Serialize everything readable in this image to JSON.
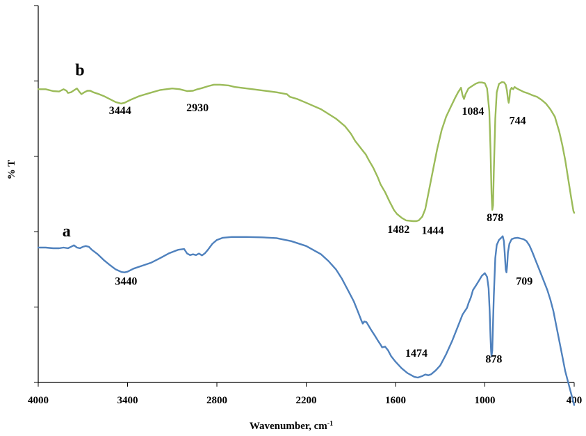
{
  "chart_data": {
    "type": "line",
    "title": "",
    "xlabel": "Wavenumber, cm",
    "xlabel_superscript": "-1",
    "ylabel": "% T",
    "x_reversed": true,
    "xlim": [
      4000,
      400
    ],
    "ylim": [
      0,
      1
    ],
    "grid": false,
    "legend": "none",
    "x_ticks": [
      "4000",
      "3400",
      "2800",
      "2200",
      "1600",
      "1000",
      "400"
    ],
    "x_tick_values": [
      4000,
      3400,
      2800,
      2200,
      1600,
      1000,
      400
    ],
    "y_tick_values": [
      0,
      0.2,
      0.4,
      0.6,
      0.8,
      1.0
    ],
    "series": [
      {
        "tag": "b",
        "color": "#9BBB59",
        "tag_pos": [
          3720,
          0.815
        ],
        "points": [
          [
            4000,
            0.778
          ],
          [
            3950,
            0.778
          ],
          [
            3900,
            0.773
          ],
          [
            3860,
            0.772
          ],
          [
            3830,
            0.778
          ],
          [
            3810,
            0.774
          ],
          [
            3800,
            0.768
          ],
          [
            3780,
            0.77
          ],
          [
            3760,
            0.775
          ],
          [
            3740,
            0.78
          ],
          [
            3725,
            0.772
          ],
          [
            3710,
            0.765
          ],
          [
            3690,
            0.77
          ],
          [
            3670,
            0.774
          ],
          [
            3650,
            0.774
          ],
          [
            3630,
            0.77
          ],
          [
            3600,
            0.766
          ],
          [
            3560,
            0.76
          ],
          [
            3520,
            0.752
          ],
          [
            3480,
            0.744
          ],
          [
            3444,
            0.74
          ],
          [
            3420,
            0.742
          ],
          [
            3380,
            0.75
          ],
          [
            3320,
            0.76
          ],
          [
            3250,
            0.768
          ],
          [
            3180,
            0.776
          ],
          [
            3100,
            0.78
          ],
          [
            3050,
            0.778
          ],
          [
            3000,
            0.773
          ],
          [
            2960,
            0.774
          ],
          [
            2930,
            0.778
          ],
          [
            2900,
            0.781
          ],
          [
            2860,
            0.786
          ],
          [
            2820,
            0.79
          ],
          [
            2780,
            0.79
          ],
          [
            2720,
            0.788
          ],
          [
            2680,
            0.784
          ],
          [
            2600,
            0.78
          ],
          [
            2500,
            0.775
          ],
          [
            2400,
            0.77
          ],
          [
            2330,
            0.765
          ],
          [
            2310,
            0.758
          ],
          [
            2260,
            0.752
          ],
          [
            2200,
            0.742
          ],
          [
            2100,
            0.725
          ],
          [
            2000,
            0.7
          ],
          [
            1940,
            0.68
          ],
          [
            1900,
            0.66
          ],
          [
            1870,
            0.64
          ],
          [
            1850,
            0.63
          ],
          [
            1820,
            0.615
          ],
          [
            1800,
            0.605
          ],
          [
            1780,
            0.59
          ],
          [
            1750,
            0.57
          ],
          [
            1720,
            0.545
          ],
          [
            1700,
            0.525
          ],
          [
            1670,
            0.505
          ],
          [
            1640,
            0.48
          ],
          [
            1610,
            0.457
          ],
          [
            1590,
            0.447
          ],
          [
            1560,
            0.437
          ],
          [
            1530,
            0.43
          ],
          [
            1482,
            0.428
          ],
          [
            1460,
            0.428
          ],
          [
            1444,
            0.43
          ],
          [
            1420,
            0.44
          ],
          [
            1400,
            0.46
          ],
          [
            1380,
            0.5
          ],
          [
            1350,
            0.56
          ],
          [
            1320,
            0.62
          ],
          [
            1290,
            0.67
          ],
          [
            1260,
            0.705
          ],
          [
            1230,
            0.73
          ],
          [
            1200,
            0.755
          ],
          [
            1180,
            0.77
          ],
          [
            1160,
            0.782
          ],
          [
            1150,
            0.762
          ],
          [
            1140,
            0.752
          ],
          [
            1130,
            0.765
          ],
          [
            1110,
            0.78
          ],
          [
            1080,
            0.788
          ],
          [
            1060,
            0.793
          ],
          [
            1040,
            0.796
          ],
          [
            1020,
            0.796
          ],
          [
            1000,
            0.794
          ],
          [
            985,
            0.78
          ],
          [
            970,
            0.72
          ],
          [
            962,
            0.62
          ],
          [
            955,
            0.5
          ],
          [
            950,
            0.458
          ],
          [
            945,
            0.47
          ],
          [
            940,
            0.56
          ],
          [
            930,
            0.7
          ],
          [
            920,
            0.77
          ],
          [
            905,
            0.792
          ],
          [
            885,
            0.797
          ],
          [
            870,
            0.796
          ],
          [
            860,
            0.79
          ],
          [
            852,
            0.775
          ],
          [
            845,
            0.752
          ],
          [
            840,
            0.742
          ],
          [
            835,
            0.752
          ],
          [
            830,
            0.775
          ],
          [
            820,
            0.782
          ],
          [
            810,
            0.778
          ],
          [
            800,
            0.784
          ],
          [
            790,
            0.781
          ],
          [
            770,
            0.777
          ],
          [
            740,
            0.771
          ],
          [
            710,
            0.767
          ],
          [
            680,
            0.762
          ],
          [
            650,
            0.758
          ],
          [
            620,
            0.75
          ],
          [
            590,
            0.74
          ],
          [
            560,
            0.725
          ],
          [
            530,
            0.705
          ],
          [
            500,
            0.665
          ],
          [
            480,
            0.63
          ],
          [
            460,
            0.59
          ],
          [
            440,
            0.54
          ],
          [
            420,
            0.49
          ],
          [
            405,
            0.455
          ],
          [
            400,
            0.45
          ]
        ]
      },
      {
        "tag": "a",
        "color": "#4F81BD",
        "tag_pos": [
          3810,
          0.387
        ],
        "points": [
          [
            4000,
            0.358
          ],
          [
            3950,
            0.358
          ],
          [
            3900,
            0.356
          ],
          [
            3860,
            0.356
          ],
          [
            3830,
            0.358
          ],
          [
            3800,
            0.356
          ],
          [
            3780,
            0.36
          ],
          [
            3760,
            0.364
          ],
          [
            3740,
            0.358
          ],
          [
            3720,
            0.356
          ],
          [
            3700,
            0.36
          ],
          [
            3680,
            0.362
          ],
          [
            3660,
            0.36
          ],
          [
            3640,
            0.352
          ],
          [
            3600,
            0.34
          ],
          [
            3560,
            0.325
          ],
          [
            3520,
            0.312
          ],
          [
            3480,
            0.3
          ],
          [
            3440,
            0.293
          ],
          [
            3420,
            0.292
          ],
          [
            3400,
            0.294
          ],
          [
            3360,
            0.302
          ],
          [
            3300,
            0.31
          ],
          [
            3240,
            0.318
          ],
          [
            3180,
            0.33
          ],
          [
            3120,
            0.343
          ],
          [
            3060,
            0.352
          ],
          [
            3020,
            0.354
          ],
          [
            3000,
            0.342
          ],
          [
            2980,
            0.338
          ],
          [
            2960,
            0.34
          ],
          [
            2940,
            0.338
          ],
          [
            2920,
            0.342
          ],
          [
            2900,
            0.337
          ],
          [
            2880,
            0.343
          ],
          [
            2860,
            0.352
          ],
          [
            2830,
            0.368
          ],
          [
            2800,
            0.378
          ],
          [
            2760,
            0.384
          ],
          [
            2700,
            0.386
          ],
          [
            2600,
            0.386
          ],
          [
            2500,
            0.385
          ],
          [
            2400,
            0.383
          ],
          [
            2300,
            0.375
          ],
          [
            2200,
            0.362
          ],
          [
            2100,
            0.34
          ],
          [
            2050,
            0.322
          ],
          [
            2000,
            0.3
          ],
          [
            1960,
            0.275
          ],
          [
            1920,
            0.245
          ],
          [
            1880,
            0.215
          ],
          [
            1850,
            0.185
          ],
          [
            1830,
            0.165
          ],
          [
            1820,
            0.156
          ],
          [
            1810,
            0.162
          ],
          [
            1795,
            0.16
          ],
          [
            1780,
            0.15
          ],
          [
            1760,
            0.137
          ],
          [
            1740,
            0.125
          ],
          [
            1720,
            0.112
          ],
          [
            1700,
            0.1
          ],
          [
            1690,
            0.093
          ],
          [
            1670,
            0.095
          ],
          [
            1650,
            0.085
          ],
          [
            1630,
            0.07
          ],
          [
            1600,
            0.055
          ],
          [
            1560,
            0.038
          ],
          [
            1520,
            0.025
          ],
          [
            1474,
            0.015
          ],
          [
            1450,
            0.013
          ],
          [
            1420,
            0.017
          ],
          [
            1400,
            0.021
          ],
          [
            1380,
            0.019
          ],
          [
            1360,
            0.022
          ],
          [
            1330,
            0.032
          ],
          [
            1300,
            0.045
          ],
          [
            1260,
            0.075
          ],
          [
            1220,
            0.11
          ],
          [
            1180,
            0.15
          ],
          [
            1150,
            0.18
          ],
          [
            1120,
            0.198
          ],
          [
            1110,
            0.21
          ],
          [
            1095,
            0.225
          ],
          [
            1080,
            0.245
          ],
          [
            1060,
            0.257
          ],
          [
            1040,
            0.27
          ],
          [
            1020,
            0.283
          ],
          [
            1000,
            0.29
          ],
          [
            985,
            0.28
          ],
          [
            975,
            0.25
          ],
          [
            968,
            0.19
          ],
          [
            962,
            0.12
          ],
          [
            958,
            0.082
          ],
          [
            955,
            0.07
          ],
          [
            950,
            0.085
          ],
          [
            945,
            0.16
          ],
          [
            940,
            0.23
          ],
          [
            930,
            0.33
          ],
          [
            920,
            0.365
          ],
          [
            905,
            0.378
          ],
          [
            890,
            0.384
          ],
          [
            880,
            0.388
          ],
          [
            872,
            0.375
          ],
          [
            866,
            0.34
          ],
          [
            860,
            0.3
          ],
          [
            855,
            0.292
          ],
          [
            850,
            0.31
          ],
          [
            845,
            0.345
          ],
          [
            835,
            0.368
          ],
          [
            820,
            0.38
          ],
          [
            800,
            0.383
          ],
          [
            780,
            0.384
          ],
          [
            760,
            0.382
          ],
          [
            740,
            0.38
          ],
          [
            720,
            0.375
          ],
          [
            700,
            0.363
          ],
          [
            680,
            0.345
          ],
          [
            660,
            0.325
          ],
          [
            640,
            0.305
          ],
          [
            620,
            0.285
          ],
          [
            600,
            0.265
          ],
          [
            580,
            0.245
          ],
          [
            560,
            0.22
          ],
          [
            540,
            0.19
          ],
          [
            520,
            0.15
          ],
          [
            500,
            0.11
          ],
          [
            480,
            0.07
          ],
          [
            460,
            0.03
          ],
          [
            440,
            0.0
          ],
          [
            420,
            -0.03
          ],
          [
            410,
            -0.045
          ],
          [
            400,
            -0.06
          ]
        ]
      }
    ],
    "annotations": [
      {
        "text": "3444",
        "x": 3450,
        "y": 0.712
      },
      {
        "text": "2930",
        "x": 2930,
        "y": 0.72
      },
      {
        "text": "1084",
        "x": 1080,
        "y": 0.71
      },
      {
        "text": "744",
        "x": 780,
        "y": 0.685
      },
      {
        "text": "878",
        "x": 932,
        "y": 0.428
      },
      {
        "text": "1482",
        "x": 1580,
        "y": 0.397
      },
      {
        "text": "1444",
        "x": 1350,
        "y": 0.394
      },
      {
        "text": "3440",
        "x": 3410,
        "y": 0.259
      },
      {
        "text": "1474",
        "x": 1460,
        "y": 0.068
      },
      {
        "text": "878",
        "x": 940,
        "y": 0.053
      },
      {
        "text": "709",
        "x": 735,
        "y": 0.259
      }
    ]
  }
}
